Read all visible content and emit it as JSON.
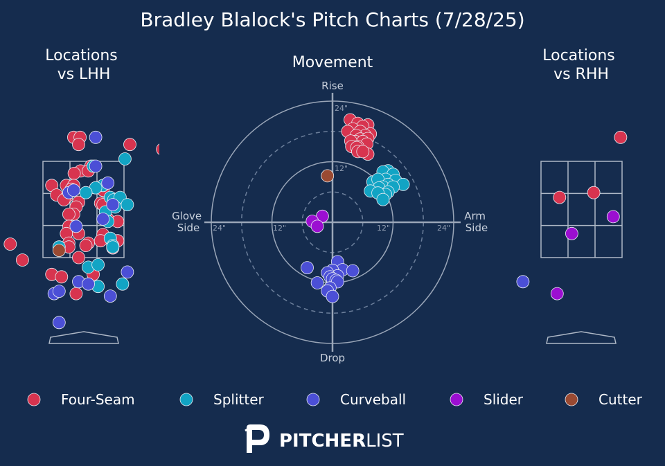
{
  "title": "Bradley Blalock's Pitch Charts (7/28/25)",
  "colors": {
    "background": "#152c4e",
    "text": "#ffffff",
    "axis": "#9aa7b8",
    "Four-Seam": "#d7344f",
    "Splitter": "#12a4c4",
    "Curveball": "#4b4fd6",
    "Slider": "#9b0fd1",
    "Cutter": "#9a4a32"
  },
  "pitch_types": [
    "Four-Seam",
    "Splitter",
    "Curveball",
    "Slider",
    "Cutter"
  ],
  "panels": {
    "lhh_title": [
      "Locations",
      "vs LHH"
    ],
    "movement_title": "Movement",
    "rhh_title": [
      "Locations",
      "vs RHH"
    ]
  },
  "movement_labels": {
    "top": "Rise",
    "bottom": "Drop",
    "left": [
      "Glove",
      "Side"
    ],
    "right": [
      "Arm",
      "Side"
    ],
    "ring_labels": [
      "24\"",
      "12\"",
      "12\"",
      "24\"",
      "12\"",
      "24\""
    ]
  },
  "legend": [
    "Four-Seam",
    "Splitter",
    "Curveball",
    "Slider",
    "Cutter"
  ],
  "brand": {
    "bold": "PITCHER",
    "light": "LIST"
  },
  "chart_data": [
    {
      "type": "scatter",
      "title": "Locations vs LHH",
      "units": "feet (catcher view); zone x -0.83..0.83, z 1.5..3.5",
      "xlim": [
        -1.7,
        1.7
      ],
      "ylim": [
        -0.2,
        4.2
      ],
      "series": [
        {
          "name": "Four-Seam",
          "points": [
            [
              -0.2,
              4.0
            ],
            [
              -0.07,
              4.0
            ],
            [
              -0.1,
              3.85
            ],
            [
              0.95,
              3.85
            ],
            [
              1.62,
              3.75
            ],
            [
              0.15,
              3.4
            ],
            [
              -0.06,
              3.3
            ],
            [
              0.1,
              3.3
            ],
            [
              -0.19,
              3.25
            ],
            [
              -0.65,
              3.0
            ],
            [
              -0.35,
              3.0
            ],
            [
              -0.2,
              3.0
            ],
            [
              -0.25,
              2.92
            ],
            [
              0.4,
              2.9
            ],
            [
              -0.55,
              2.8
            ],
            [
              -0.35,
              2.75
            ],
            [
              -0.4,
              2.7
            ],
            [
              -0.1,
              2.65
            ],
            [
              0.55,
              2.68
            ],
            [
              0.35,
              2.63
            ],
            [
              -0.15,
              2.55
            ],
            [
              0.4,
              2.6
            ],
            [
              -0.2,
              2.4
            ],
            [
              -0.3,
              2.4
            ],
            [
              0.5,
              2.3
            ],
            [
              -0.3,
              2.15
            ],
            [
              0.7,
              2.25
            ],
            [
              -0.35,
              2.0
            ],
            [
              -0.1,
              2.0
            ],
            [
              0.4,
              1.98
            ],
            [
              0.1,
              1.8
            ],
            [
              -0.3,
              1.8
            ],
            [
              0.05,
              1.75
            ],
            [
              0.7,
              1.85
            ],
            [
              -0.3,
              1.72
            ],
            [
              -0.1,
              1.5
            ],
            [
              -1.5,
              1.78
            ],
            [
              -1.25,
              1.45
            ],
            [
              -0.65,
              1.15
            ],
            [
              -0.45,
              1.1
            ],
            [
              0.2,
              1.15
            ],
            [
              -0.15,
              0.75
            ],
            [
              0.35,
              1.85
            ],
            [
              0.6,
              1.7
            ]
          ]
        },
        {
          "name": "Splitter",
          "points": [
            [
              0.85,
              3.55
            ],
            [
              0.2,
              3.4
            ],
            [
              0.4,
              3.0
            ],
            [
              0.25,
              2.95
            ],
            [
              0.05,
              2.85
            ],
            [
              0.55,
              2.75
            ],
            [
              0.62,
              2.7
            ],
            [
              0.75,
              2.75
            ],
            [
              0.65,
              2.55
            ],
            [
              0.9,
              2.6
            ],
            [
              0.45,
              2.45
            ],
            [
              0.5,
              2.25
            ],
            [
              0.55,
              1.9
            ],
            [
              0.6,
              1.75
            ],
            [
              -0.5,
              1.72
            ],
            [
              0.6,
              1.72
            ],
            [
              0.1,
              1.3
            ],
            [
              0.3,
              1.35
            ],
            [
              0.8,
              0.95
            ],
            [
              0.3,
              0.9
            ]
          ]
        },
        {
          "name": "Curveball",
          "points": [
            [
              0.25,
              4.0
            ],
            [
              0.25,
              3.4
            ],
            [
              0.5,
              3.05
            ],
            [
              -0.3,
              2.85
            ],
            [
              -0.2,
              2.9
            ],
            [
              0.6,
              2.6
            ],
            [
              0.4,
              2.3
            ],
            [
              -0.15,
              2.15
            ],
            [
              0.9,
              1.2
            ],
            [
              -0.1,
              1.0
            ],
            [
              0.1,
              0.95
            ],
            [
              -0.6,
              0.75
            ],
            [
              -0.5,
              0.8
            ],
            [
              0.55,
              0.7
            ],
            [
              -0.5,
              0.15
            ]
          ]
        },
        {
          "name": "Cutter",
          "points": [
            [
              -0.5,
              1.65
            ]
          ]
        }
      ]
    },
    {
      "type": "scatter",
      "title": "Movement",
      "units": "inches; x = horizontal break (glove side negative, arm side positive), y = induced vertical break",
      "xlim": [
        -24,
        24
      ],
      "ylim": [
        -24,
        24
      ],
      "rings": [
        6,
        12,
        18,
        24
      ],
      "series": [
        {
          "name": "Four-Seam",
          "points": [
            [
              3.5,
              20.3
            ],
            [
              5,
              19.6
            ],
            [
              7,
              19.3
            ],
            [
              6,
              19
            ],
            [
              4,
              18.5
            ],
            [
              5.5,
              18
            ],
            [
              3,
              18
            ],
            [
              7.5,
              17.5
            ],
            [
              6.5,
              17.2
            ],
            [
              4.7,
              17.2
            ],
            [
              5.5,
              16.5
            ],
            [
              7,
              16.6
            ],
            [
              4.5,
              16
            ],
            [
              6,
              16
            ],
            [
              3.6,
              16.1
            ],
            [
              6.8,
              15.5
            ],
            [
              5,
              15
            ],
            [
              3.8,
              15
            ],
            [
              4.8,
              14.8
            ],
            [
              7,
              13.5
            ],
            [
              5,
              14
            ],
            [
              6,
              14
            ]
          ]
        },
        {
          "name": "Splitter",
          "points": [
            [
              11,
              10.2
            ],
            [
              10,
              10
            ],
            [
              12,
              9.5
            ],
            [
              10.5,
              8.5
            ],
            [
              12.5,
              8.3
            ],
            [
              8,
              8
            ],
            [
              9,
              8.5
            ],
            [
              11,
              7.5
            ],
            [
              10,
              7
            ],
            [
              14,
              7.5
            ],
            [
              12,
              7
            ],
            [
              9.2,
              6.8
            ],
            [
              7.5,
              6.2
            ],
            [
              11,
              6
            ],
            [
              10.5,
              5.5
            ],
            [
              9,
              5.8
            ],
            [
              10,
              4.5
            ]
          ]
        },
        {
          "name": "Curveball",
          "points": [
            [
              1,
              -7.8
            ],
            [
              -5,
              -9
            ],
            [
              2,
              -9.4
            ],
            [
              4,
              -9.6
            ],
            [
              0,
              -9.5
            ],
            [
              -1,
              -10
            ],
            [
              1,
              -10.6
            ],
            [
              -0.5,
              -10.8
            ],
            [
              0,
              -11.2
            ],
            [
              0.7,
              -11.5
            ],
            [
              -3,
              -12
            ],
            [
              1,
              -11.8
            ],
            [
              -0.5,
              -13
            ],
            [
              -1,
              -13.6
            ],
            [
              0,
              -14.7
            ]
          ]
        },
        {
          "name": "Slider",
          "points": [
            [
              -2,
              1.2
            ],
            [
              -4,
              0.2
            ],
            [
              -3,
              -0.8
            ]
          ]
        },
        {
          "name": "Cutter",
          "points": [
            [
              -1,
              9.2
            ]
          ]
        }
      ]
    },
    {
      "type": "scatter",
      "title": "Locations vs RHH",
      "units": "feet (catcher view); zone x -0.83..0.83, z 1.5..3.5",
      "xlim": [
        -1.7,
        1.7
      ],
      "ylim": [
        -0.2,
        4.2
      ],
      "series": [
        {
          "name": "Four-Seam",
          "points": [
            [
              0.8,
              4.0
            ],
            [
              -0.45,
              2.75
            ],
            [
              0.25,
              2.85
            ]
          ]
        },
        {
          "name": "Splitter",
          "points": []
        },
        {
          "name": "Curveball",
          "points": [
            [
              -1.2,
              1.0
            ]
          ]
        },
        {
          "name": "Slider",
          "points": [
            [
              0.65,
              2.35
            ],
            [
              -0.2,
              2.0
            ],
            [
              -0.5,
              0.75
            ]
          ]
        },
        {
          "name": "Cutter",
          "points": []
        }
      ]
    }
  ]
}
